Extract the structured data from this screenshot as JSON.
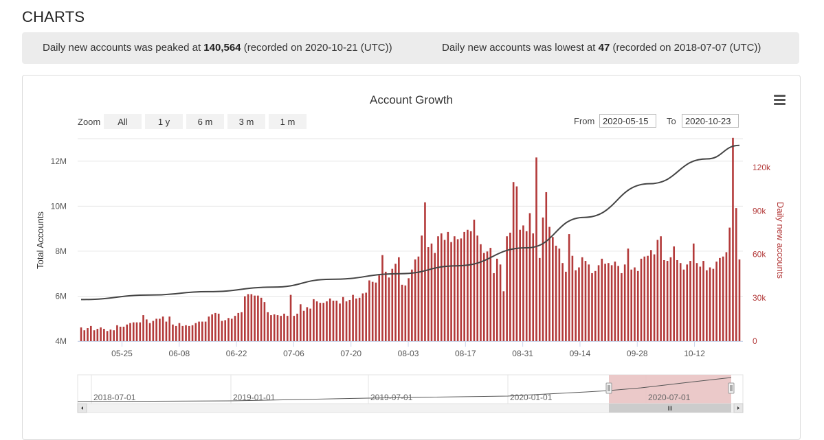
{
  "page": {
    "title": "CHARTS"
  },
  "stats": {
    "peak_prefix": "Daily new accounts was peaked at ",
    "peak_value": "140,564",
    "peak_suffix": " (recorded on 2020-10-21 (UTC))",
    "low_prefix": "Daily new accounts was lowest at ",
    "low_value": "47",
    "low_suffix": " (recorded on 2018-07-07 (UTC))"
  },
  "controls": {
    "zoom_label": "Zoom",
    "zoom_buttons": [
      "All",
      "1 y",
      "6 m",
      "3 m",
      "1 m"
    ],
    "from_label": "From",
    "from_value": "2020-05-15",
    "to_label": "To",
    "to_value": "2020-10-23"
  },
  "colors": {
    "bar": "#b33a3a",
    "line": "#444444",
    "navigator_mask": "#e9c3c3",
    "axis_right": "#b33a3a"
  },
  "icons": {
    "menu": "hamburger-menu-icon"
  },
  "chart_data": {
    "type": "bar",
    "title": "Account Growth",
    "y_left": {
      "label": "Total Accounts",
      "ticks": [
        "4M",
        "6M",
        "8M",
        "10M",
        "12M"
      ],
      "range": [
        4000000,
        13000000
      ]
    },
    "y_right": {
      "label": "Daily new accounts",
      "ticks": [
        "0",
        "30k",
        "60k",
        "90k",
        "120k"
      ],
      "range": [
        0,
        140000
      ]
    },
    "x_tick_labels": [
      "05-25",
      "06-08",
      "06-22",
      "07-06",
      "07-20",
      "08-03",
      "08-17",
      "08-31",
      "09-14",
      "09-28",
      "10-12"
    ],
    "start_date": "2020-05-15",
    "end_date": "2020-10-23",
    "series": [
      {
        "name": "Daily new accounts",
        "type": "bar",
        "axis": "right",
        "values": [
          9500,
          7500,
          9000,
          10500,
          7500,
          8500,
          9500,
          8500,
          7000,
          8000,
          7500,
          11000,
          10000,
          10000,
          11500,
          12500,
          13000,
          13000,
          13000,
          18000,
          15000,
          12500,
          14000,
          15500,
          15500,
          17000,
          13500,
          17000,
          11500,
          10500,
          12500,
          10500,
          11000,
          10500,
          11000,
          12500,
          13500,
          13500,
          13500,
          17000,
          18500,
          19500,
          19000,
          14000,
          14500,
          16000,
          15500,
          17500,
          19500,
          20000,
          31000,
          32500,
          32500,
          31500,
          31500,
          30000,
          27000,
          20000,
          18000,
          18500,
          18000,
          17500,
          19000,
          17500,
          32000,
          17500,
          19000,
          25500,
          21000,
          23500,
          22500,
          29000,
          27500,
          26500,
          26500,
          27500,
          29500,
          28000,
          28000,
          26000,
          30500,
          27500,
          28500,
          32000,
          29500,
          30000,
          33000,
          33500,
          42000,
          41000,
          40500,
          45500,
          59500,
          48000,
          44000,
          50000,
          53500,
          58000,
          39000,
          38500,
          43500,
          49500,
          56500,
          58500,
          73000,
          96000,
          65000,
          67500,
          61000,
          72500,
          74500,
          70000,
          75500,
          68500,
          72500,
          70500,
          71000,
          75500,
          77000,
          76000,
          84000,
          73000,
          67000,
          61000,
          62000,
          64500,
          47000,
          57000,
          53000,
          34500,
          72500,
          75000,
          110000,
          107000,
          77000,
          80000,
          76000,
          88500,
          74500,
          127000,
          57500,
          85500,
          103000,
          79000,
          72000,
          66000,
          64000,
          54000,
          48000,
          74000,
          59000,
          49000,
          51000,
          58000,
          55500,
          53000,
          47000,
          48500,
          52500,
          57000,
          53500,
          54000,
          52500,
          55000,
          52000,
          47000,
          53000,
          64000,
          49500,
          51000,
          48500,
          57000,
          58500,
          59000,
          63000,
          60000,
          70000,
          72500,
          56000,
          55500,
          58000,
          65500,
          56000,
          54000,
          49500,
          53000,
          55500,
          67500,
          54000,
          51500,
          55500,
          49000,
          51000,
          50000,
          55000,
          57500,
          58500,
          61500,
          78500,
          140564,
          92000,
          56500
        ],
        "color": "#b33a3a"
      },
      {
        "name": "Total Accounts",
        "type": "line",
        "axis": "left",
        "points": [
          [
            "2020-05-15",
            5850000
          ],
          [
            "2020-06-01",
            6050000
          ],
          [
            "2020-06-15",
            6200000
          ],
          [
            "2020-07-01",
            6400000
          ],
          [
            "2020-07-15",
            6750000
          ],
          [
            "2020-08-01",
            7000000
          ],
          [
            "2020-08-15",
            7350000
          ],
          [
            "2020-09-01",
            8150000
          ],
          [
            "2020-09-15",
            9500000
          ],
          [
            "2020-10-01",
            11000000
          ],
          [
            "2020-10-15",
            12100000
          ],
          [
            "2020-10-23",
            12700000
          ]
        ],
        "color": "#444444"
      }
    ],
    "navigator": {
      "labels": [
        "2018-07-01",
        "2019-01-01",
        "2019-07-01",
        "2020-01-01",
        "2020-07-01"
      ],
      "selected_from": "2020-05-15",
      "selected_to": "2020-10-23"
    },
    "grid": true,
    "legend": "bottom"
  }
}
